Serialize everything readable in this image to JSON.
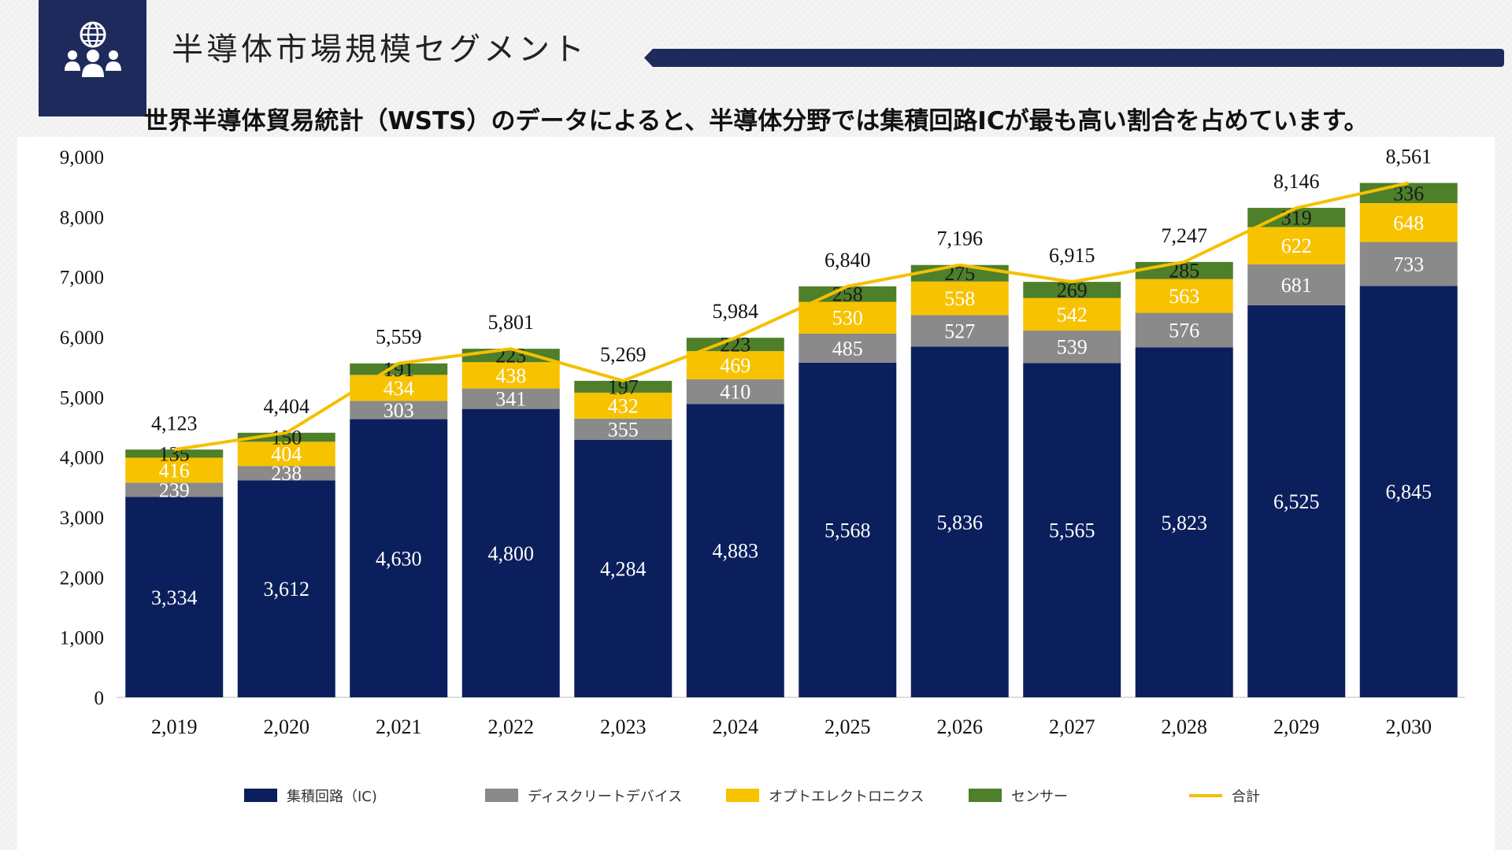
{
  "header": {
    "title": "半導体市場規模セグメント",
    "subtitle": "世界半導体貿易統計（WSTS）のデータによると、半導体分野では集積回路ICが最も高い割合を占めています。",
    "icon": "people-globe-icon"
  },
  "colors": {
    "ic": "#0a1f5c",
    "discrete": "#8a8a8a",
    "opto": "#f7c200",
    "sensor": "#4e7f2a",
    "total": "#f5c000",
    "brand": "#1f2a5c"
  },
  "legend": {
    "ic": "集積回路（IC)",
    "discrete": "ディスクリートデバイス",
    "opto": "オプトエレクトロニクス",
    "sensor": "センサー",
    "total": "合計"
  },
  "chart_data": {
    "type": "bar",
    "stacked": true,
    "categories": [
      "2,019",
      "2,020",
      "2,021",
      "2,022",
      "2,023",
      "2,024",
      "2,025",
      "2,026",
      "2,027",
      "2,028",
      "2,029",
      "2,030"
    ],
    "series": [
      {
        "name": "集積回路（IC)",
        "values": [
          3334,
          3612,
          4630,
          4800,
          4284,
          4883,
          5568,
          5836,
          5565,
          5823,
          6525,
          6845
        ]
      },
      {
        "name": "ディスクリートデバイス",
        "values": [
          239,
          238,
          303,
          341,
          355,
          410,
          485,
          527,
          539,
          576,
          681,
          733
        ]
      },
      {
        "name": "オプトエレクトロニクス",
        "values": [
          416,
          404,
          434,
          438,
          432,
          469,
          530,
          558,
          542,
          563,
          622,
          648
        ]
      },
      {
        "name": "センサー",
        "values": [
          135,
          150,
          191,
          223,
          197,
          223,
          258,
          275,
          269,
          285,
          319,
          336
        ]
      }
    ],
    "line": {
      "name": "合計",
      "values": [
        4123,
        4404,
        5559,
        5801,
        5269,
        5984,
        6840,
        7196,
        6915,
        7247,
        8146,
        8561
      ]
    },
    "yticks": [
      "0",
      "1,000",
      "2,000",
      "3,000",
      "4,000",
      "5,000",
      "6,000",
      "7,000",
      "8,000",
      "9,000"
    ],
    "ylim": [
      0,
      9000
    ],
    "xlabel": "",
    "ylabel": "",
    "legend_position": "bottom"
  }
}
